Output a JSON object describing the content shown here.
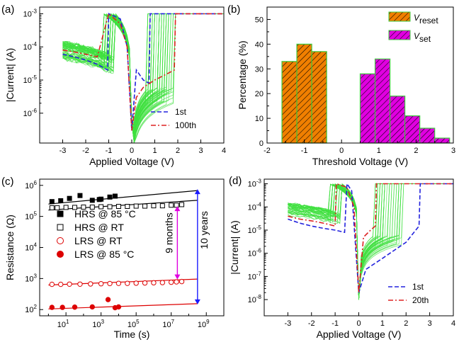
{
  "chart_data": [
    {
      "panel_label": "(a)",
      "type": "line",
      "xlabel": "Applied Voltage (V)",
      "ylabel": "|Current| (A)",
      "xlim": [
        -4,
        4
      ],
      "ylim_log10": [
        -6.9,
        -2.8
      ],
      "xticks": [
        "-3",
        "-2",
        "-1",
        "0",
        "1",
        "2",
        "3",
        "4"
      ],
      "yticks": [
        "10",
        "10",
        "10",
        "10"
      ],
      "ytick_exp": [
        "-6",
        "-5",
        "-4",
        "-3"
      ],
      "compliance_current": 0.001,
      "series": [
        {
          "name": "1st",
          "style": "dash",
          "color": "#2222dd",
          "x": [
            -3.0,
            -2.5,
            -2.0,
            -1.5,
            -1.05,
            -1.0,
            -0.5,
            -0.2,
            0,
            0.2,
            0.5,
            0.75,
            0.8,
            1.0,
            2.0,
            3.0,
            4.0
          ],
          "y": [
            6e-05,
            5e-05,
            4e-05,
            3e-05,
            2e-05,
            0.001,
            0.0007,
            0.0001,
            3e-07,
            2e-05,
            1e-05,
            8e-06,
            0.001,
            0.001,
            0.001,
            0.001,
            0.001
          ]
        },
        {
          "name": "100th",
          "style": "dashdot",
          "color": "#dd2222",
          "x": [
            -3.0,
            -2.5,
            -2.0,
            -1.5,
            -1.0,
            -0.5,
            -0.2,
            0,
            0.2,
            0.5,
            1.0,
            1.5,
            1.85,
            1.9,
            2.0,
            3.0,
            4.0
          ],
          "y": [
            8e-05,
            7e-05,
            6e-05,
            5e-05,
            0.001,
            0.0005,
            0.0001,
            3e-07,
            3e-06,
            6e-06,
            1e-05,
            1.5e-05,
            2e-05,
            0.001,
            0.001,
            0.001,
            0.001
          ]
        }
      ],
      "legend": [
        "1st",
        "100th"
      ]
    },
    {
      "panel_label": "(b)",
      "type": "bar",
      "xlabel": "Threshold Voltage (V)",
      "ylabel": "Percentage (%)",
      "xlim": [
        -2,
        3
      ],
      "ylim": [
        0,
        55
      ],
      "xticks": [
        "-2",
        "-1",
        "0",
        "1",
        "2",
        "3"
      ],
      "yticks": [
        "0",
        "10",
        "20",
        "30",
        "40",
        "50"
      ],
      "bin_width": 0.4,
      "series": [
        {
          "name": "V_reset",
          "label_main": "V",
          "label_sub": "reset",
          "color": "#f07f00",
          "hatch": true,
          "bin_centers": [
            -1.4,
            -1.0,
            -0.6
          ],
          "values": [
            33,
            40,
            37
          ]
        },
        {
          "name": "V_set",
          "label_main": "V",
          "label_sub": "set",
          "color": "#e000e0",
          "hatch": true,
          "bin_centers": [
            0.7,
            1.1,
            1.5,
            1.9,
            2.3,
            2.7
          ],
          "values": [
            28,
            34,
            19,
            11,
            6,
            2
          ]
        }
      ],
      "legend_position": "top-right"
    },
    {
      "panel_label": "(c)",
      "type": "scatter",
      "xlabel": "Time (s)",
      "ylabel": "Resistance (Ω)",
      "xlim_log10": [
        -0.5,
        10
      ],
      "ylim_log10": [
        1.8,
        6.2
      ],
      "xticks": [
        "10",
        "10",
        "10",
        "10",
        "10"
      ],
      "xtick_exp": [
        "1",
        "3",
        "5",
        "7",
        "9"
      ],
      "yticks": [
        "10",
        "10",
        "10",
        "10",
        "10"
      ],
      "ytick_exp": [
        "2",
        "3",
        "4",
        "5",
        "6"
      ],
      "series": [
        {
          "name": "HRS @ 85 °C",
          "marker": "filled-square",
          "color": "#000000",
          "x_log10": [
            0.2,
            0.7,
            1.2,
            1.8,
            2.5,
            2.9,
            3.0,
            3.5,
            3.8
          ],
          "y": [
            300000,
            320000,
            380000,
            470000,
            330000,
            350000,
            360000,
            420000,
            450000
          ]
        },
        {
          "name": "HRS @ RT",
          "marker": "open-square",
          "color": "#000000",
          "x_log10": [
            0.2,
            0.5,
            1.0,
            1.5,
            2.0,
            2.5,
            3.0,
            3.5,
            4.0,
            4.5,
            5.0,
            5.5,
            6.0,
            6.5,
            7.0,
            7.3,
            7.6
          ],
          "y": [
            190000,
            190000,
            195000,
            195000,
            200000,
            200000,
            205000,
            205000,
            210000,
            210000,
            215000,
            215000,
            220000,
            220000,
            230000,
            230000,
            240000
          ]
        },
        {
          "name": "LRS @ RT",
          "marker": "open-circle",
          "color": "#dd0000",
          "x_log10": [
            0.2,
            0.7,
            1.2,
            1.8,
            2.4,
            3.0,
            3.5,
            4.0,
            4.5,
            5.0,
            5.5,
            6.0,
            6.5,
            7.0,
            7.3,
            7.6
          ],
          "y": [
            650,
            650,
            660,
            660,
            670,
            680,
            690,
            700,
            700,
            710,
            720,
            730,
            740,
            760,
            780,
            800
          ]
        },
        {
          "name": "LRS @ 85 °C",
          "marker": "filled-circle",
          "color": "#dd0000",
          "x_log10": [
            0.2,
            0.8,
            1.5,
            2.5,
            3.4,
            3.8,
            4.0
          ],
          "y": [
            118,
            118,
            120,
            122,
            210,
            115,
            122
          ]
        }
      ],
      "fit_lines": [
        {
          "color": "#000000",
          "x_log10": [
            0,
            8.5
          ],
          "y": [
            250000,
            680000
          ]
        },
        {
          "color": "#000000",
          "x_log10": [
            0,
            8.5
          ],
          "y": [
            160000,
            330000
          ]
        },
        {
          "color": "#dd0000",
          "x_log10": [
            0,
            8.5
          ],
          "y": [
            620,
            960
          ]
        },
        {
          "color": "#dd0000",
          "x_log10": [
            0,
            8.5
          ],
          "y": [
            105,
            155
          ]
        }
      ],
      "annotations": [
        {
          "text": "9 months",
          "color": "#e000e0",
          "x_log10": 7.35
        },
        {
          "text": "10 years",
          "color": "#1a1aff",
          "x_log10": 8.5
        }
      ]
    },
    {
      "panel_label": "(d)",
      "type": "line",
      "xlabel": "Applied Voltage (V)",
      "ylabel": "|Current| (A)",
      "xlim": [
        -4,
        4
      ],
      "ylim_log10": [
        -8.7,
        -2.8
      ],
      "xticks": [
        "-3",
        "-2",
        "-1",
        "0",
        "1",
        "2",
        "3",
        "4"
      ],
      "yticks": [
        "10",
        "10",
        "10",
        "10",
        "10",
        "10"
      ],
      "ytick_exp": [
        "-8",
        "-7",
        "-6",
        "-5",
        "-4",
        "-3"
      ],
      "compliance_current": 0.001,
      "series": [
        {
          "name": "1st",
          "style": "dash",
          "color": "#2222dd",
          "x": [
            -3.0,
            -2.5,
            -2.0,
            -1.5,
            -1.0,
            -0.6,
            -0.5,
            -0.3,
            0,
            0.3,
            1.0,
            2.0,
            2.55,
            2.6,
            3.0,
            4.0
          ],
          "y": [
            3e-05,
            2e-05,
            1.5e-05,
            1.2e-05,
            1e-05,
            8e-06,
            0.001,
            0.0005,
            2e-08,
            2e-07,
            6e-07,
            3e-06,
            1.5e-05,
            0.001,
            0.001,
            0.001
          ]
        },
        {
          "name": "20th",
          "style": "dashdot",
          "color": "#dd2222",
          "x": [
            -3.0,
            -2.5,
            -2.0,
            -1.5,
            -1.0,
            -0.95,
            -0.5,
            -0.2,
            0,
            0.2,
            0.5,
            0.7,
            0.75,
            1.0,
            2.0,
            4.0
          ],
          "y": [
            4e-05,
            3e-05,
            2.5e-05,
            2e-05,
            1.5e-05,
            0.001,
            0.0007,
            0.0001,
            2e-08,
            5e-06,
            1e-05,
            1.5e-05,
            0.001,
            0.001,
            0.001,
            0.001
          ]
        }
      ],
      "legend": [
        "1st",
        "20th"
      ]
    }
  ]
}
